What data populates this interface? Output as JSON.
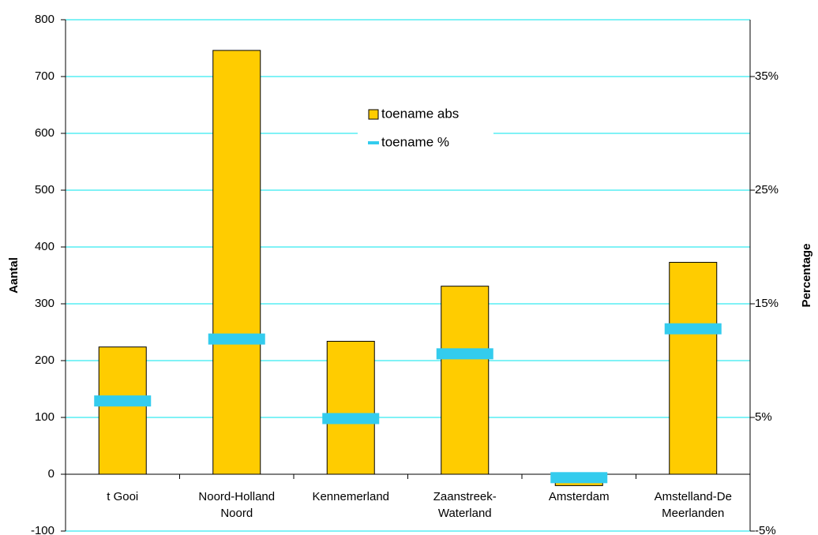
{
  "chart_data": {
    "type": "bar",
    "y_label": "Aantal",
    "y2_label": "Percentage",
    "categories": [
      "t Gooi",
      "Noord-Holland Noord",
      "Kennemerland",
      "Zaanstreek-Waterland",
      "Amsterdam",
      "Amstelland-De Meerlanden"
    ],
    "series": [
      {
        "name": "toename abs",
        "type": "bar",
        "color": "#ffcc00",
        "values": [
          224,
          746,
          234,
          331,
          -20,
          373
        ]
      },
      {
        "name": "toename %",
        "type": "marker",
        "axis": "y2",
        "color": "#33ccee",
        "values": [
          6.45,
          11.9,
          4.9,
          10.6,
          -0.3,
          12.8
        ]
      }
    ],
    "ylim": [
      -100,
      800
    ],
    "yticks": [
      -100,
      0,
      100,
      200,
      300,
      400,
      500,
      600,
      700,
      800
    ],
    "y2lim": [
      -5,
      40
    ],
    "y2ticks": [
      {
        "value": -5,
        "label": "-5%"
      },
      {
        "value": 5,
        "label": "5%"
      },
      {
        "value": 15,
        "label": "15%"
      },
      {
        "value": 25,
        "label": "25%"
      },
      {
        "value": 35,
        "label": "35%"
      }
    ],
    "grid": true,
    "grid_color": "#00e5ee",
    "legend": "top"
  }
}
